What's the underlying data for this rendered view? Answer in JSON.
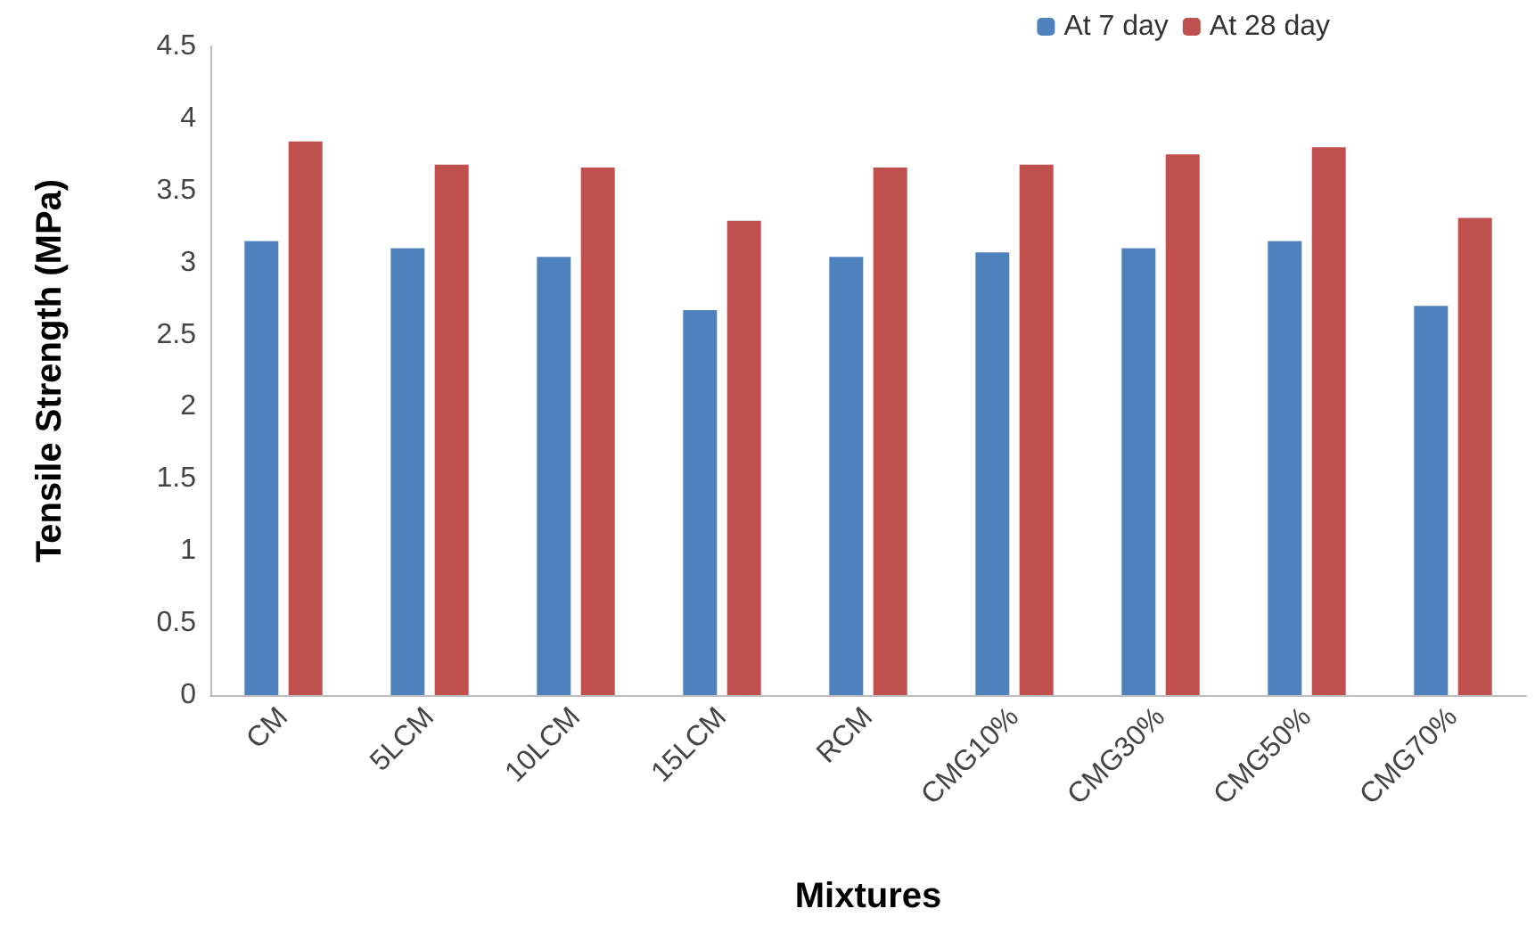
{
  "chart_data": {
    "type": "bar",
    "xlabel": "Mixtures",
    "ylabel": "Tensile Strength (MPa)",
    "categories": [
      "CM",
      "5LCM",
      "10LCM",
      "15LCM",
      "RCM",
      "CMG10%",
      "CMG30%",
      "CMG50%",
      "CMG70%"
    ],
    "series": [
      {
        "name": "At 7 day",
        "color": "#4f81bd",
        "values": [
          3.15,
          3.1,
          3.04,
          2.67,
          3.04,
          3.07,
          3.1,
          3.15,
          2.7
        ]
      },
      {
        "name": "At 28 day",
        "color": "#c0504d",
        "values": [
          3.84,
          3.68,
          3.66,
          3.29,
          3.66,
          3.68,
          3.75,
          3.8,
          3.31
        ]
      }
    ],
    "ylim": [
      0,
      4.5
    ],
    "yticks": [
      0,
      0.5,
      1,
      1.5,
      2,
      2.5,
      3,
      3.5,
      4,
      4.5
    ],
    "grid": false,
    "legend": "top right"
  }
}
